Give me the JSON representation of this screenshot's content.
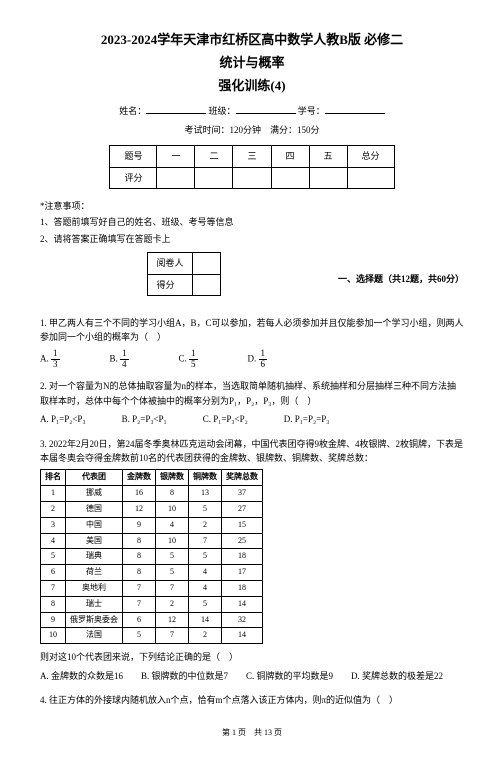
{
  "header": {
    "title1": "2023-2024学年天津市红桥区高中数学人教B版 必修二",
    "title2": "统计与概率",
    "title3": "强化训练(4)"
  },
  "info": {
    "name_label": "姓名：",
    "class_label": "班级：",
    "id_label": "学号：",
    "exam_time": "考试时间：120分钟　满分：150分"
  },
  "score_table": {
    "row1": [
      "题号",
      "一",
      "二",
      "三",
      "四",
      "五",
      "总分"
    ],
    "row2_label": "评分"
  },
  "notes": {
    "star": "*注意事项：",
    "n1": "1、答题前填写好自己的姓名、班级、考号等信息",
    "n2": "2、请将答案正确填写在答题卡上"
  },
  "small_box": {
    "r1": "阅卷人",
    "r2": "得分"
  },
  "section1_title": "一、选择题（共12题，共60分）",
  "q1": {
    "text": "1. 甲乙两人有三个不同的学习小组A，B，C可以参加，若每人必须参加并且仅能参加一个学习小组，则两人参加同一个小组的概率为（　）",
    "opts": [
      {
        "label": "A.",
        "n": "1",
        "d": "3"
      },
      {
        "label": "B.",
        "n": "1",
        "d": "4"
      },
      {
        "label": "C.",
        "n": "1",
        "d": "5"
      },
      {
        "label": "D.",
        "n": "1",
        "d": "6"
      }
    ]
  },
  "q2": {
    "text": "2. 对一个容量为N的总体抽取容量为n的样本，当选取简单随机抽样、系统抽样和分层抽样三种不同方法抽取样本时，总体中每个个体被抽中的概率分别为P₁，P₂，P₃，则（　）",
    "opts": [
      "A. P₁=P₂<P₃",
      "B. P₂=P₃<P₁",
      "C. P₁=P₃<P₂",
      "D. P₁=P₂=P₃"
    ]
  },
  "q3": {
    "text": "3. 2022年2月20日，第24届冬季奥林匹克运动会闭幕，中国代表团夺得9枚金牌、4枚银牌、2枚铜牌，下表是本届冬奥会夺得金牌数前10名的代表团获得的金牌数、银牌数、铜牌数、奖牌总数：",
    "columns": [
      "排名",
      "代表团",
      "金牌数",
      "银牌数",
      "铜牌数",
      "奖牌总数"
    ],
    "rows": [
      [
        "1",
        "挪威",
        "16",
        "8",
        "13",
        "37"
      ],
      [
        "2",
        "德国",
        "12",
        "10",
        "5",
        "27"
      ],
      [
        "3",
        "中国",
        "9",
        "4",
        "2",
        "15"
      ],
      [
        "4",
        "美国",
        "8",
        "10",
        "7",
        "25"
      ],
      [
        "5",
        "瑞典",
        "8",
        "5",
        "5",
        "18"
      ],
      [
        "6",
        "荷兰",
        "8",
        "5",
        "4",
        "17"
      ],
      [
        "7",
        "奥地利",
        "7",
        "7",
        "4",
        "18"
      ],
      [
        "8",
        "瑞士",
        "7",
        "2",
        "5",
        "14"
      ],
      [
        "9",
        "俄罗斯奥委会",
        "6",
        "12",
        "14",
        "32"
      ],
      [
        "10",
        "法国",
        "5",
        "7",
        "2",
        "14"
      ]
    ],
    "after": "则对这10个代表团来说，下列结论正确的是（　）",
    "opts": [
      "A. 金牌数的众数是16",
      "B. 银牌数的中位数是7",
      "C. 铜牌数的平均数是9",
      "D. 奖牌总数的极差是22"
    ]
  },
  "q4": {
    "text": "4. 往正方体的外接球内随机放入n个点，恰有m个点落入该正方体内，则π的近似值为（　）"
  },
  "footer": "第 1 页　共 13 页"
}
